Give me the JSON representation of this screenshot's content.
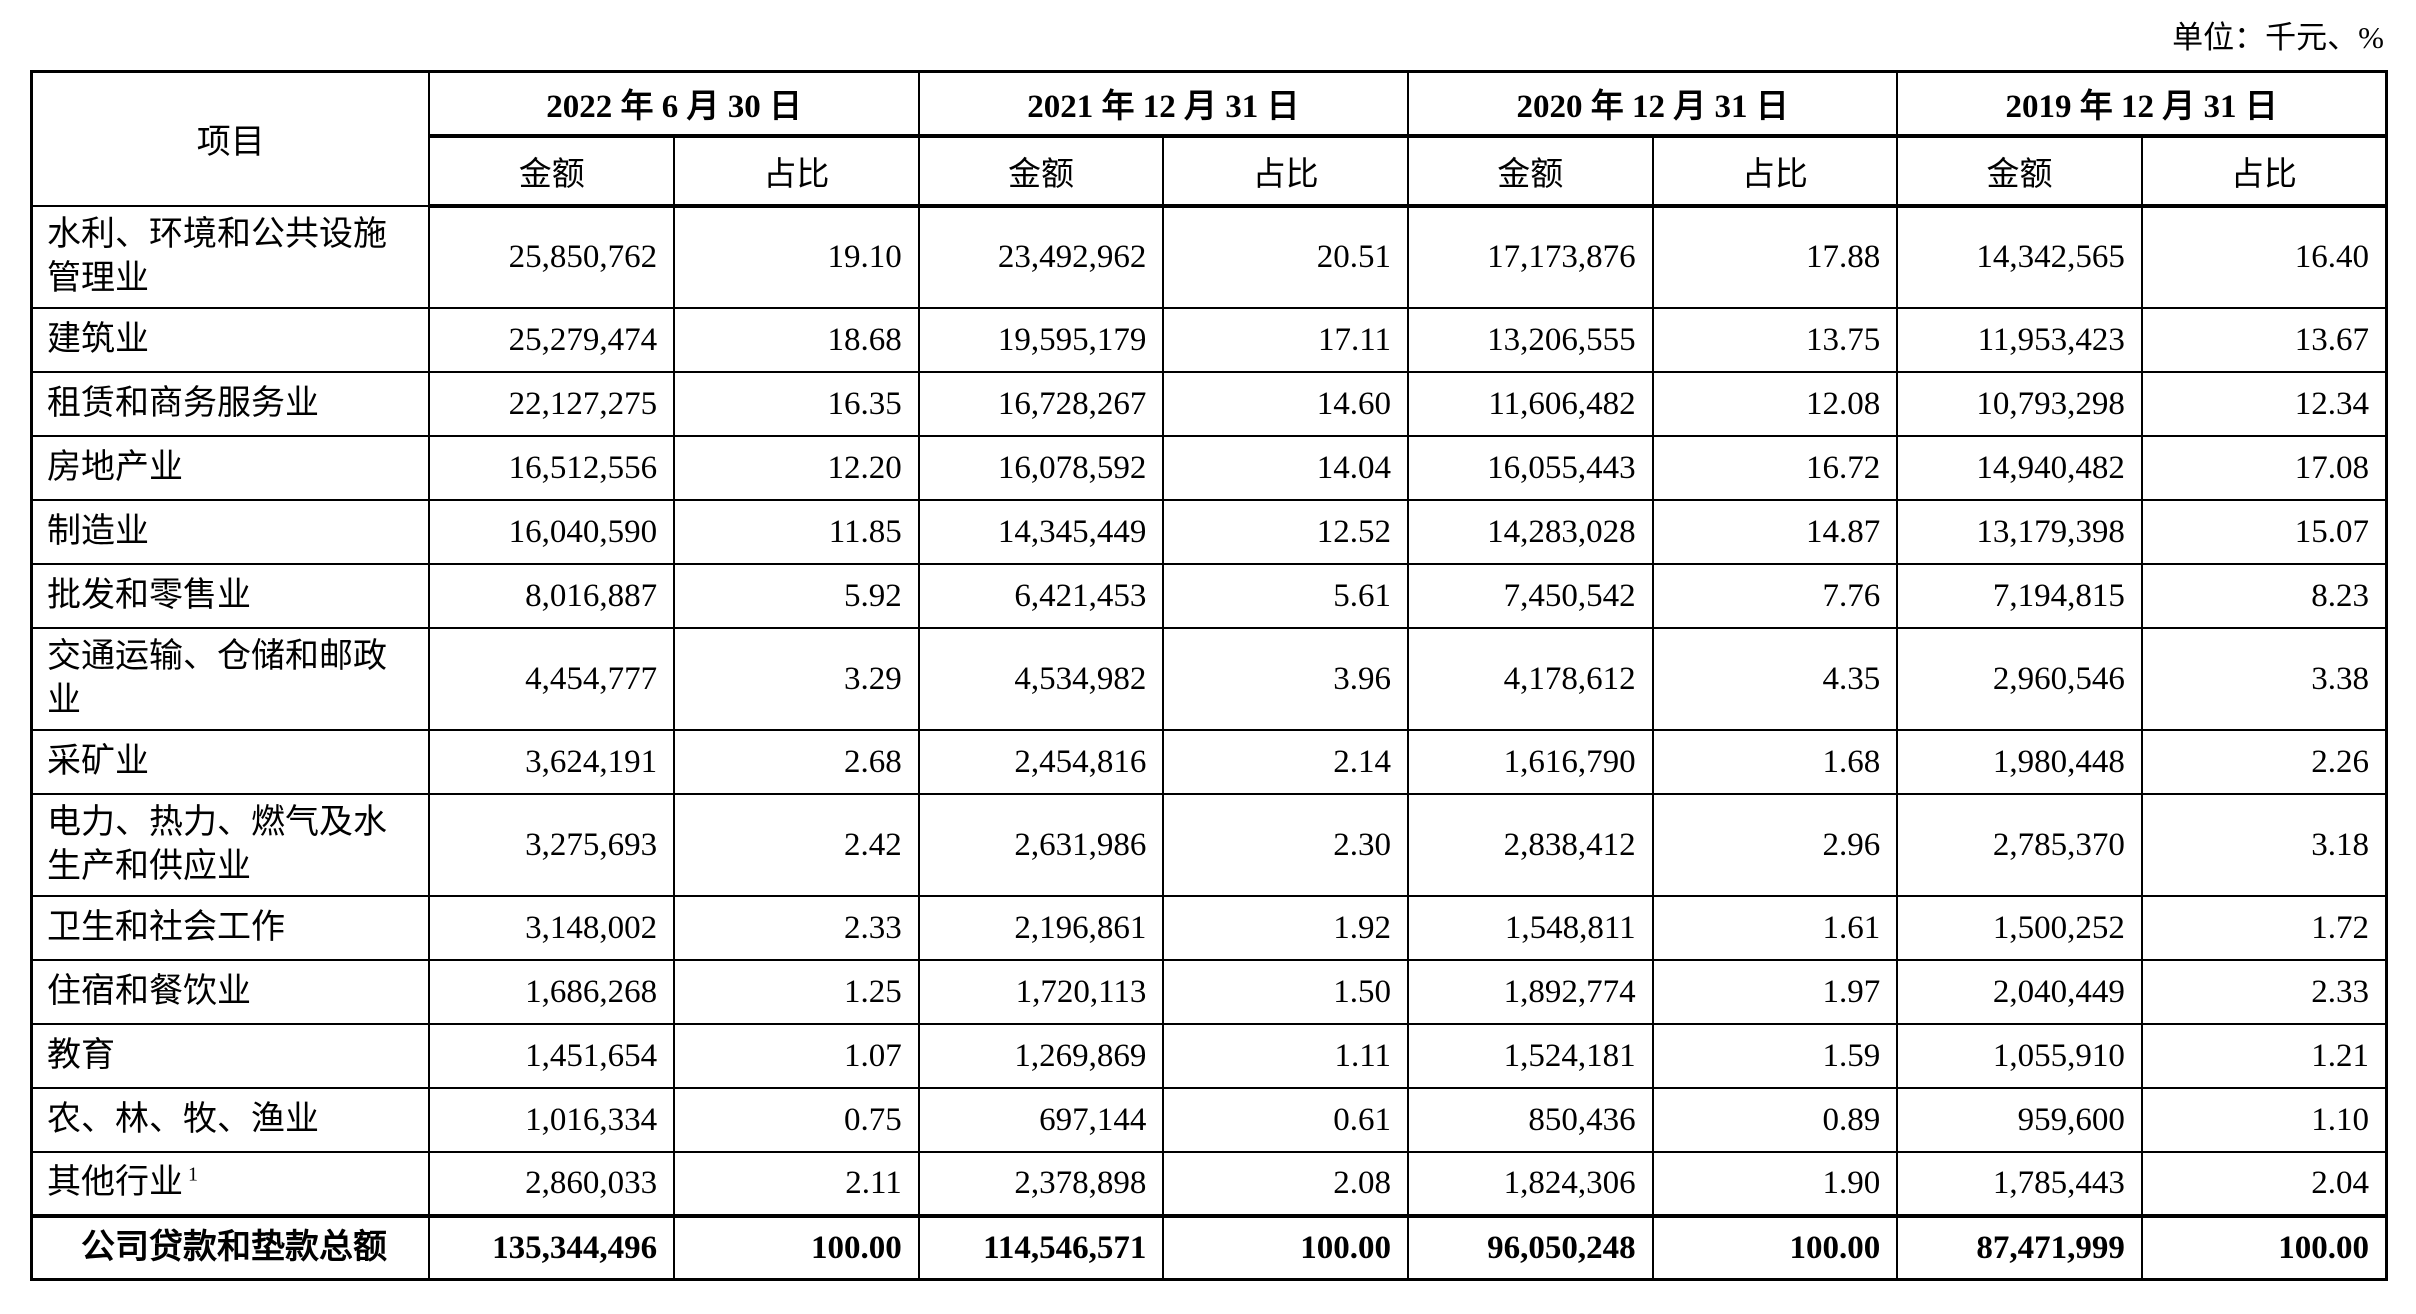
{
  "page": {
    "unit_note": "单位：千元、%"
  },
  "table": {
    "item_header": "项目",
    "col_groups": [
      {
        "date": "2022 年 6 月 30 日"
      },
      {
        "date": "2021 年 12 月 31 日"
      },
      {
        "date": "2020 年 12 月 31 日"
      },
      {
        "date": "2019 年 12 月 31 日"
      }
    ],
    "sub_headers": {
      "amount": "金额",
      "ratio": "占比"
    },
    "rows": [
      {
        "label": "水利、环境和公共设施管理业",
        "values": [
          "25,850,762",
          "19.10",
          "23,492,962",
          "20.51",
          "17,173,876",
          "17.88",
          "14,342,565",
          "16.40"
        ]
      },
      {
        "label": "建筑业",
        "values": [
          "25,279,474",
          "18.68",
          "19,595,179",
          "17.11",
          "13,206,555",
          "13.75",
          "11,953,423",
          "13.67"
        ]
      },
      {
        "label": "租赁和商务服务业",
        "values": [
          "22,127,275",
          "16.35",
          "16,728,267",
          "14.60",
          "11,606,482",
          "12.08",
          "10,793,298",
          "12.34"
        ]
      },
      {
        "label": "房地产业",
        "values": [
          "16,512,556",
          "12.20",
          "16,078,592",
          "14.04",
          "16,055,443",
          "16.72",
          "14,940,482",
          "17.08"
        ]
      },
      {
        "label": "制造业",
        "values": [
          "16,040,590",
          "11.85",
          "14,345,449",
          "12.52",
          "14,283,028",
          "14.87",
          "13,179,398",
          "15.07"
        ]
      },
      {
        "label": "批发和零售业",
        "values": [
          "8,016,887",
          "5.92",
          "6,421,453",
          "5.61",
          "7,450,542",
          "7.76",
          "7,194,815",
          "8.23"
        ]
      },
      {
        "label": "交通运输、仓储和邮政业",
        "values": [
          "4,454,777",
          "3.29",
          "4,534,982",
          "3.96",
          "4,178,612",
          "4.35",
          "2,960,546",
          "3.38"
        ]
      },
      {
        "label": "采矿业",
        "values": [
          "3,624,191",
          "2.68",
          "2,454,816",
          "2.14",
          "1,616,790",
          "1.68",
          "1,980,448",
          "2.26"
        ]
      },
      {
        "label": "电力、热力、燃气及水生产和供应业",
        "values": [
          "3,275,693",
          "2.42",
          "2,631,986",
          "2.30",
          "2,838,412",
          "2.96",
          "2,785,370",
          "3.18"
        ]
      },
      {
        "label": "卫生和社会工作",
        "values": [
          "3,148,002",
          "2.33",
          "2,196,861",
          "1.92",
          "1,548,811",
          "1.61",
          "1,500,252",
          "1.72"
        ]
      },
      {
        "label": "住宿和餐饮业",
        "values": [
          "1,686,268",
          "1.25",
          "1,720,113",
          "1.50",
          "1,892,774",
          "1.97",
          "2,040,449",
          "2.33"
        ]
      },
      {
        "label": "教育",
        "values": [
          "1,451,654",
          "1.07",
          "1,269,869",
          "1.11",
          "1,524,181",
          "1.59",
          "1,055,910",
          "1.21"
        ]
      },
      {
        "label": "农、林、牧、渔业",
        "values": [
          "1,016,334",
          "0.75",
          "697,144",
          "0.61",
          "850,436",
          "0.89",
          "959,600",
          "1.10"
        ]
      },
      {
        "label": "其他行业",
        "label_sup": "1",
        "values": [
          "2,860,033",
          "2.11",
          "2,378,898",
          "2.08",
          "1,824,306",
          "1.90",
          "1,785,443",
          "2.04"
        ]
      }
    ],
    "total_row": {
      "label": "公司贷款和垫款总额",
      "values": [
        "135,344,496",
        "100.00",
        "114,546,571",
        "100.00",
        "96,050,248",
        "100.00",
        "87,471,999",
        "100.00"
      ]
    }
  }
}
